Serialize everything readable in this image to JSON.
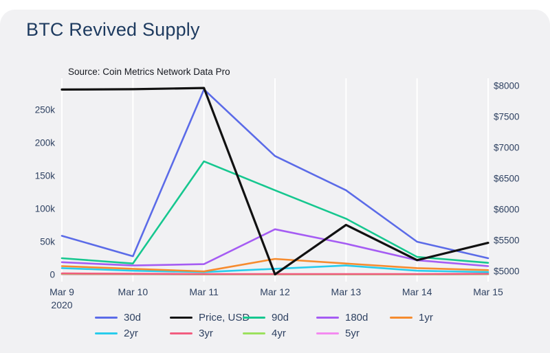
{
  "chart_data": {
    "type": "line",
    "title": "BTC Revived Supply",
    "source": "Source: Coin Metrics Network Data Pro",
    "x_labels": [
      "Mar 9",
      "Mar 10",
      "Mar 11",
      "Mar 12",
      "Mar 13",
      "Mar 14",
      "Mar 15"
    ],
    "x_first_sublabel": "2020",
    "left_axis": {
      "labels": [
        "0",
        "50k",
        "100k",
        "150k",
        "200k",
        "250k"
      ],
      "values": [
        0,
        50000,
        100000,
        150000,
        200000,
        250000
      ],
      "range": [
        0,
        260000
      ]
    },
    "right_axis": {
      "labels": [
        "$5000",
        "$5500",
        "$6000",
        "$6500",
        "$7000",
        "$7500",
        "$8000"
      ],
      "values": [
        5000,
        5500,
        6000,
        6500,
        7000,
        7500,
        8000
      ],
      "range": [
        5000,
        8000
      ]
    },
    "grid": "vertical-only",
    "legend_position": "bottom",
    "series": [
      {
        "name": "30d",
        "color": "#5b6be8",
        "axis": "left",
        "values": [
          59000,
          28000,
          281000,
          180000,
          128000,
          50000,
          25000
        ]
      },
      {
        "name": "Price, USD",
        "color": "#111111",
        "axis": "right",
        "values": [
          7940,
          7945,
          7965,
          4950,
          5750,
          5180,
          5460
        ]
      },
      {
        "name": "90d",
        "color": "#16c78f",
        "axis": "left",
        "values": [
          25000,
          17000,
          172000,
          128000,
          85000,
          27000,
          18000
        ]
      },
      {
        "name": "180d",
        "color": "#a55cf3",
        "axis": "left",
        "values": [
          19000,
          14000,
          16000,
          69000,
          47000,
          22000,
          13000
        ]
      },
      {
        "name": "1yr",
        "color": "#f68b2e",
        "axis": "left",
        "values": [
          13000,
          9000,
          5000,
          24000,
          17000,
          10000,
          7000
        ]
      },
      {
        "name": "2yr",
        "color": "#28ccec",
        "axis": "left",
        "values": [
          10000,
          6000,
          4000,
          9000,
          14000,
          6000,
          4000
        ]
      },
      {
        "name": "3yr",
        "color": "#f25c7f",
        "axis": "left",
        "values": [
          2000,
          1500,
          1000,
          1000,
          1000,
          1000,
          1500
        ]
      },
      {
        "name": "4yr",
        "color": "#9be15d",
        "axis": "left",
        "values": [
          1000,
          800,
          500,
          500,
          500,
          500,
          800
        ]
      },
      {
        "name": "5yr",
        "color": "#f48af0",
        "axis": "left",
        "values": [
          500,
          400,
          300,
          300,
          300,
          300,
          500
        ]
      }
    ],
    "draw_order": [
      "5yr",
      "4yr",
      "3yr",
      "2yr",
      "1yr",
      "180d",
      "90d",
      "30d",
      "Price, USD"
    ],
    "colors": {
      "card_background": "#f1f1f3",
      "page_background": "#ffffff",
      "title_text": "#1d3a5f",
      "axis_text": "#2e4161",
      "gridline": "#ffffff"
    }
  }
}
